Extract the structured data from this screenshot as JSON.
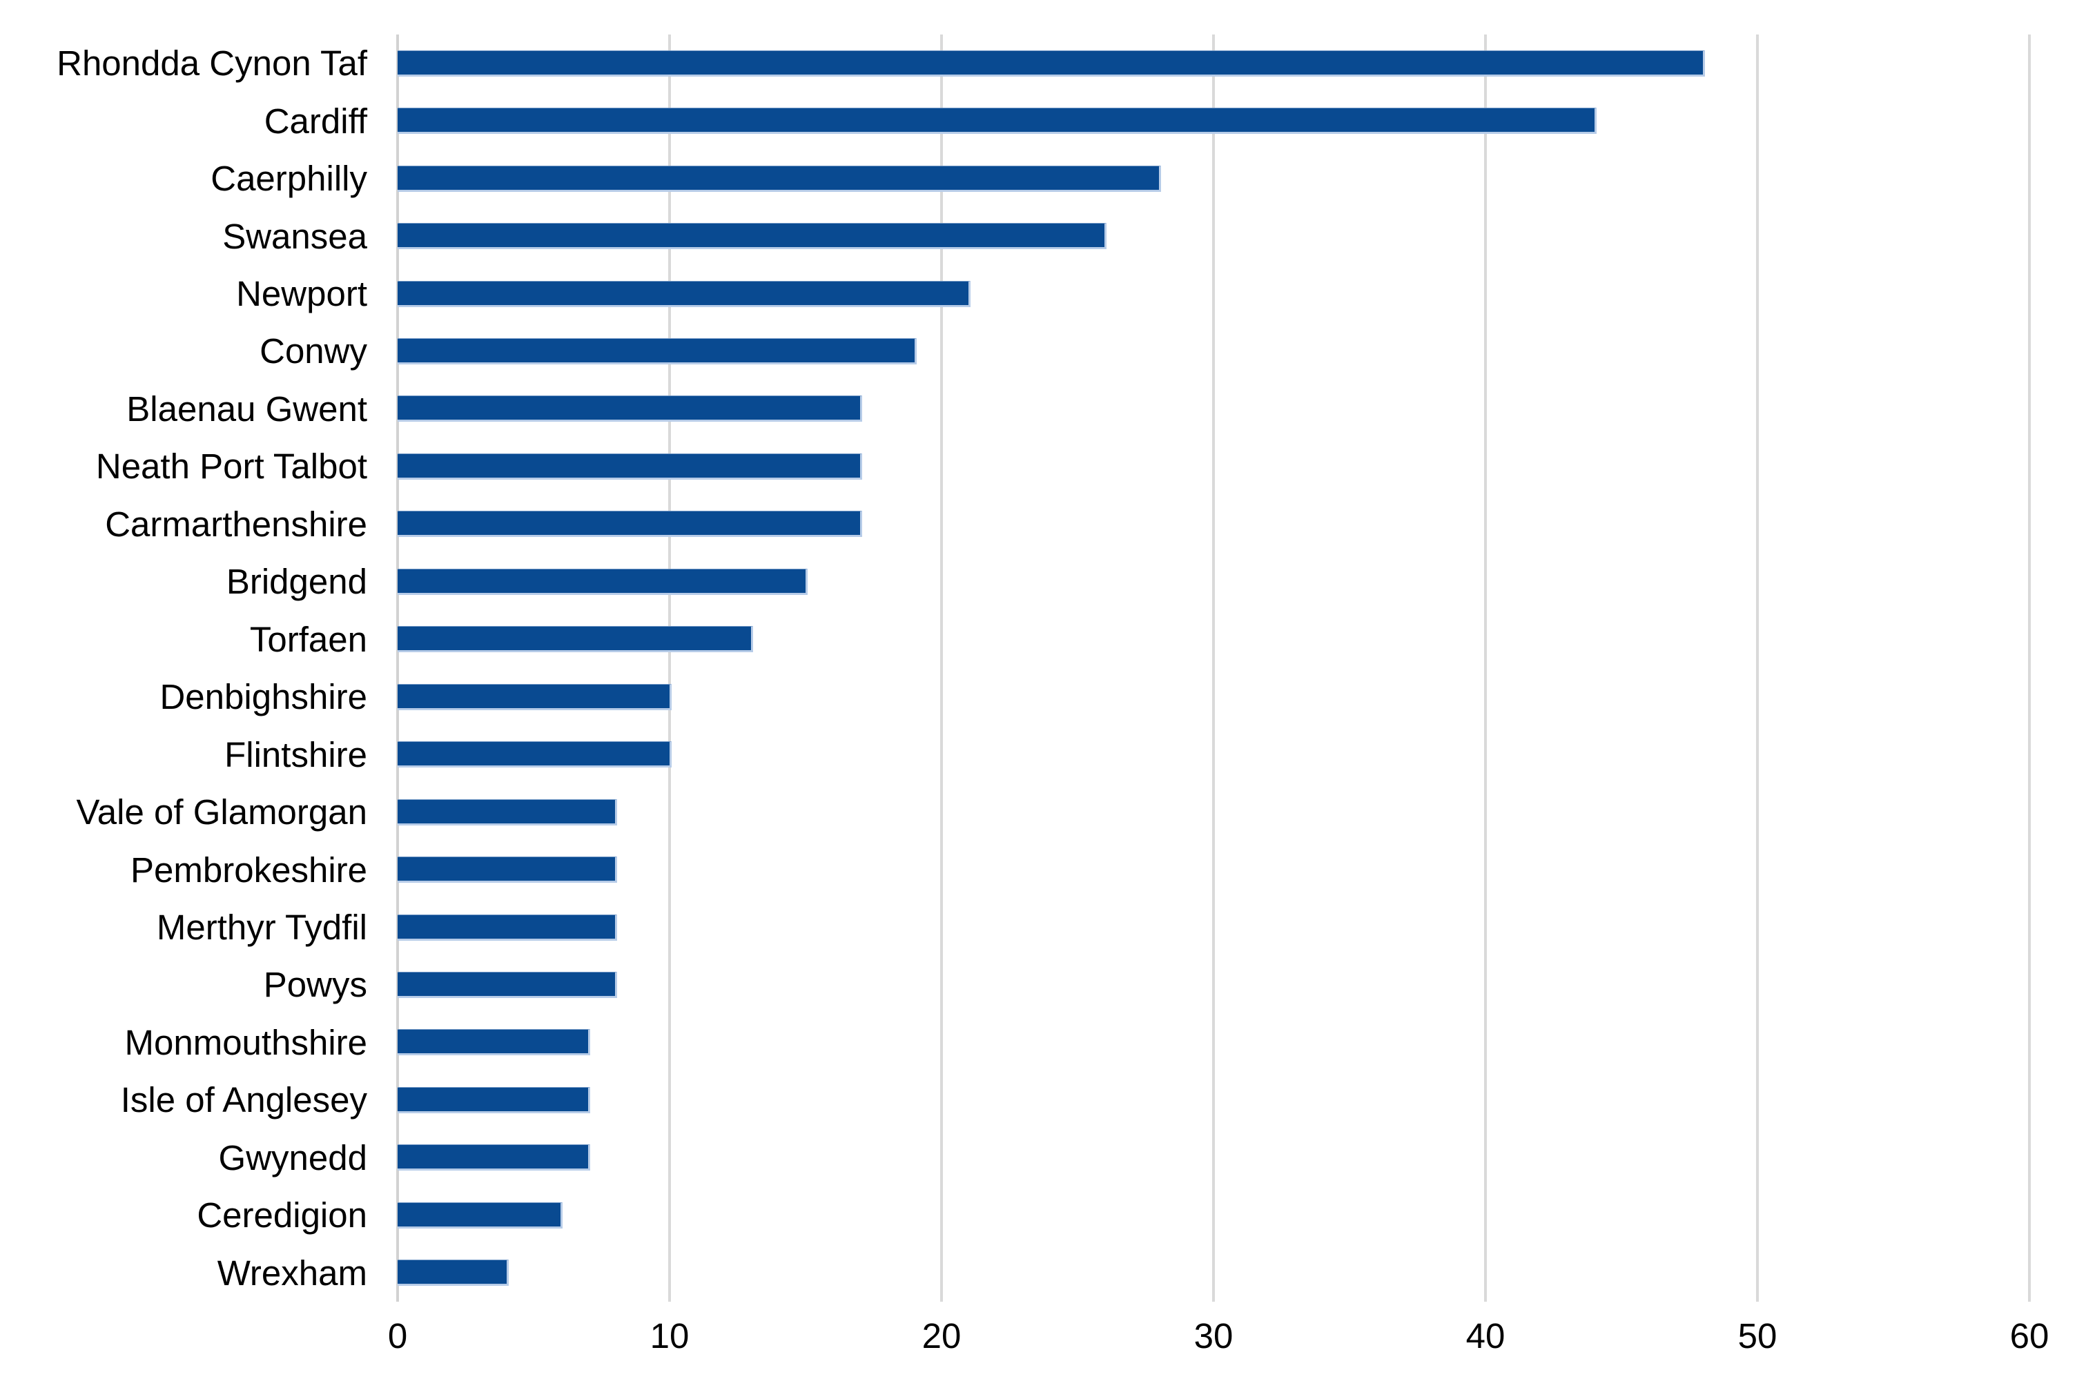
{
  "chart_data": {
    "type": "bar",
    "orientation": "horizontal",
    "title": "",
    "xlabel": "",
    "ylabel": "",
    "legend_position": "none",
    "grid": "vertical",
    "xlim": [
      0,
      60
    ],
    "x_ticks": [
      0,
      10,
      20,
      30,
      40,
      50,
      60
    ],
    "categories": [
      "Rhondda Cynon Taf",
      "Cardiff",
      "Caerphilly",
      "Swansea",
      "Newport",
      "Conwy",
      "Blaenau Gwent",
      "Neath Port Talbot",
      "Carmarthenshire",
      "Bridgend",
      "Torfaen",
      "Denbighshire",
      "Flintshire",
      "Vale of Glamorgan",
      "Pembrokeshire",
      "Merthyr Tydfil",
      "Powys",
      "Monmouthshire",
      "Isle of Anglesey",
      "Gwynedd",
      "Ceredigion",
      "Wrexham"
    ],
    "values": [
      48,
      44,
      28,
      26,
      21,
      19,
      17,
      17,
      17,
      15,
      13,
      10,
      10,
      8,
      8,
      8,
      8,
      7,
      7,
      7,
      6,
      4
    ],
    "colors": {
      "bar_fill": "#094a91",
      "bar_edge": "#b7cce8",
      "gridline": "#d9d9d9",
      "axis_line": "#d2d2d2",
      "text": "#000000",
      "background": "#ffffff"
    }
  }
}
